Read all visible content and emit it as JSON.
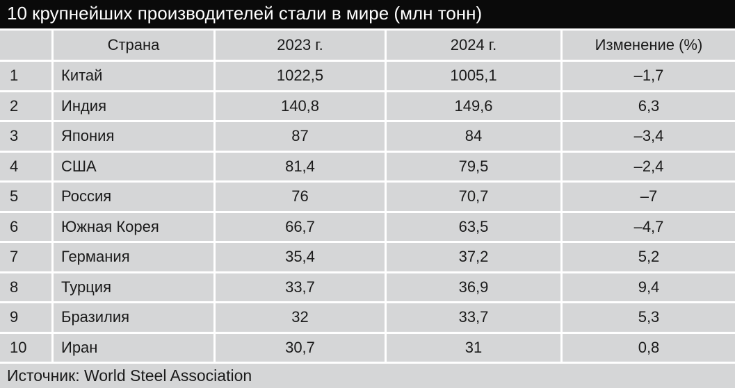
{
  "title": "10 крупнейших производителей стали в мире (млн тонн)",
  "source": "Источник: World Steel Association",
  "colors": {
    "title_bar_bg": "#0a0a0a",
    "title_text": "#ffffff",
    "cell_bg": "#d5d6d7",
    "border": "#ffffff",
    "text": "#1a1a1a"
  },
  "table": {
    "headers": [
      "",
      "Страна",
      "2023 г.",
      "2024 г.",
      "Изменение (%)"
    ],
    "rows": [
      {
        "rank": "1",
        "country": "Китай",
        "y2023": "1022,5",
        "y2024": "1005,1",
        "change": "–1,7"
      },
      {
        "rank": "2",
        "country": "Индия",
        "y2023": "140,8",
        "y2024": "149,6",
        "change": "6,3"
      },
      {
        "rank": "3",
        "country": "Япония",
        "y2023": "87",
        "y2024": "84",
        "change": "–3,4"
      },
      {
        "rank": "4",
        "country": "США",
        "y2023": "81,4",
        "y2024": "79,5",
        "change": "–2,4"
      },
      {
        "rank": "5",
        "country": "Россия",
        "y2023": "76",
        "y2024": "70,7",
        "change": "–7"
      },
      {
        "rank": "6",
        "country": "Южная Корея",
        "y2023": "66,7",
        "y2024": "63,5",
        "change": "–4,7"
      },
      {
        "rank": "7",
        "country": "Германия",
        "y2023": "35,4",
        "y2024": "37,2",
        "change": "5,2"
      },
      {
        "rank": "8",
        "country": "Турция",
        "y2023": "33,7",
        "y2024": "36,9",
        "change": "9,4"
      },
      {
        "rank": "9",
        "country": "Бразилия",
        "y2023": "32",
        "y2024": "33,7",
        "change": "5,3"
      },
      {
        "rank": "10",
        "country": "Иран",
        "y2023": "30,7",
        "y2024": "31",
        "change": "0,8"
      }
    ]
  },
  "chart_data": {
    "type": "table",
    "title": "10 крупнейших производителей стали в мире (млн тонн)",
    "columns": [
      "№",
      "Страна",
      "2023 г.",
      "2024 г.",
      "Изменение (%)"
    ],
    "rows": [
      [
        1,
        "Китай",
        1022.5,
        1005.1,
        -1.7
      ],
      [
        2,
        "Индия",
        140.8,
        149.6,
        6.3
      ],
      [
        3,
        "Япония",
        87,
        84,
        -3.4
      ],
      [
        4,
        "США",
        81.4,
        79.5,
        -2.4
      ],
      [
        5,
        "Россия",
        76,
        70.7,
        -7
      ],
      [
        6,
        "Южная Корея",
        66.7,
        63.5,
        -4.7
      ],
      [
        7,
        "Германия",
        35.4,
        37.2,
        5.2
      ],
      [
        8,
        "Турция",
        33.7,
        36.9,
        9.4
      ],
      [
        9,
        "Бразилия",
        32,
        33.7,
        5.3
      ],
      [
        10,
        "Иран",
        30.7,
        31,
        0.8
      ]
    ],
    "units": "млн тонн",
    "source": "Источник: World Steel Association"
  }
}
